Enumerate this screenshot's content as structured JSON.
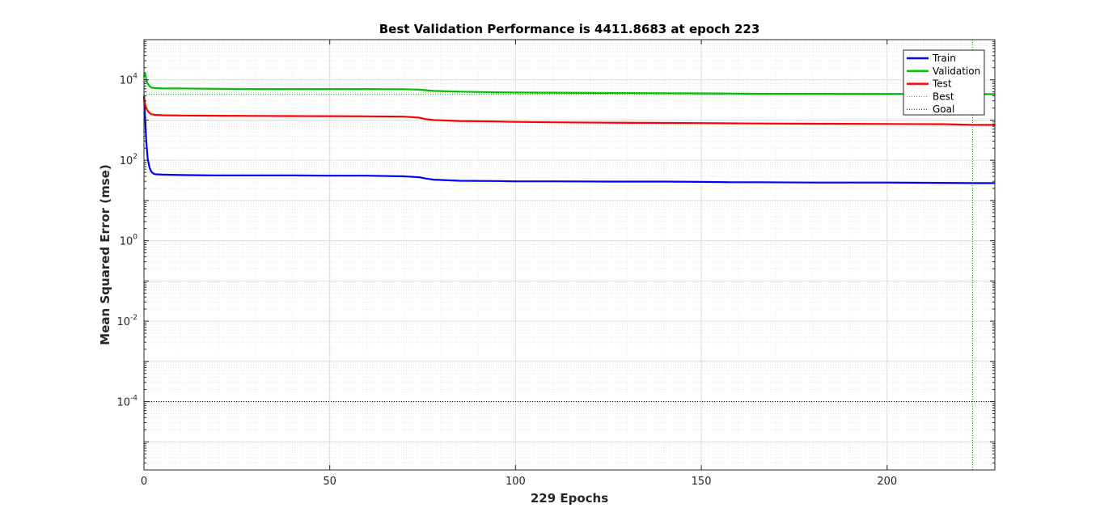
{
  "chart_data": {
    "type": "line",
    "title": "Best Validation Performance is 4411.8683 at epoch 223",
    "xlabel": "229 Epochs",
    "ylabel": "Mean Squared Error  (mse)",
    "xlim": [
      0,
      229
    ],
    "ylim": [
      2e-06,
      100000
    ],
    "yscale": "log",
    "grid": true,
    "legend_position": "top-right",
    "x_ticks": [
      0,
      50,
      100,
      150,
      200
    ],
    "x_tick_labels": [
      "0",
      "50",
      "100",
      "150",
      "200"
    ],
    "y_ticks": [
      {
        "value": 10000,
        "base": "10",
        "exp": "4"
      },
      {
        "value": 100,
        "base": "10",
        "exp": "2"
      },
      {
        "value": 1,
        "base": "10",
        "exp": "0"
      },
      {
        "value": 0.01,
        "base": "10",
        "exp": "-2"
      },
      {
        "value": 0.0001,
        "base": "10",
        "exp": "-4"
      }
    ],
    "series": [
      {
        "name": "Train",
        "color": "#0000ff",
        "style": "solid",
        "x": [
          0,
          0.3,
          0.6,
          1,
          1.5,
          2,
          2.5,
          3,
          5,
          10,
          20,
          30,
          40,
          50,
          60,
          70,
          74,
          76,
          78,
          85,
          95,
          100,
          110,
          125,
          140,
          150,
          158,
          165,
          180,
          200,
          215,
          223,
          229
        ],
        "y": [
          4000,
          1200,
          300,
          110,
          65,
          52,
          47,
          45,
          44,
          43,
          42,
          42,
          42,
          41.5,
          41.5,
          40,
          38,
          35,
          33,
          31,
          30.5,
          30,
          30,
          29.5,
          29.5,
          29,
          28.5,
          28.5,
          28,
          28,
          27.5,
          27,
          27
        ]
      },
      {
        "name": "Validation",
        "color": "#00c000",
        "style": "solid",
        "x": [
          0,
          0.3,
          0.6,
          1,
          1.5,
          2,
          3,
          5,
          10,
          20,
          30,
          40,
          50,
          60,
          70,
          74,
          76,
          78,
          85,
          95,
          100,
          110,
          125,
          140,
          150,
          158,
          165,
          180,
          200,
          215,
          223,
          229
        ],
        "y": [
          12000,
          15000,
          10000,
          8000,
          7000,
          6400,
          6200,
          6100,
          6100,
          6000,
          5900,
          5900,
          5900,
          5900,
          5850,
          5700,
          5500,
          5300,
          5100,
          4900,
          4850,
          4800,
          4700,
          4650,
          4600,
          4550,
          4500,
          4500,
          4470,
          4450,
          4411.8683,
          4420
        ]
      },
      {
        "name": "Test",
        "color": "#ff0000",
        "style": "solid",
        "x": [
          0,
          0.3,
          0.6,
          1,
          1.5,
          2,
          3,
          5,
          10,
          20,
          30,
          40,
          50,
          60,
          70,
          74,
          76,
          78,
          85,
          95,
          100,
          110,
          125,
          140,
          150,
          158,
          165,
          180,
          200,
          215,
          223,
          229
        ],
        "y": [
          4000,
          2500,
          2000,
          1700,
          1500,
          1400,
          1350,
          1320,
          1300,
          1280,
          1270,
          1260,
          1250,
          1240,
          1220,
          1150,
          1050,
          1000,
          950,
          920,
          900,
          880,
          860,
          850,
          840,
          830,
          820,
          810,
          800,
          790,
          760,
          760
        ]
      },
      {
        "name": "Best",
        "color": "#00a000",
        "style": "dotted",
        "kind": "best-marker",
        "epoch": 223,
        "value": 4411.8683
      },
      {
        "name": "Goal",
        "color": "#000000",
        "style": "dotted",
        "kind": "goal-line",
        "value": 0.0001
      }
    ]
  }
}
